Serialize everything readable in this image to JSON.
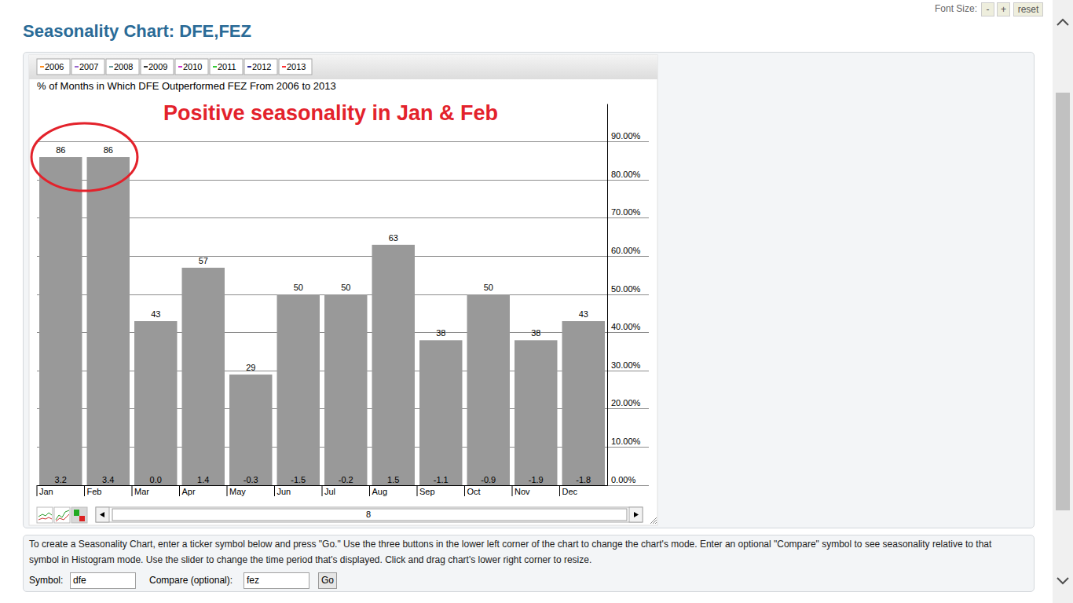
{
  "page": {
    "title": "Seasonality Chart: DFE,FEZ",
    "font_size_label": "Font Size:",
    "font_size_buttons": [
      "-",
      "+",
      "reset"
    ],
    "slider_value": 8,
    "instructions": "To create a Seasonality Chart, enter a ticker symbol below and press \"Go.\" Use the three buttons in the lower left corner of the chart to change the chart's mode. Enter an optional \"Compare\" symbol to see seasonality relative to that symbol in Histogram mode. Use the slider to change the time period that's displayed. Click and drag chart's lower right corner to resize.",
    "symbol_label": "Symbol:",
    "symbol_value": "dfe",
    "compare_label": "Compare (optional):",
    "compare_value": "fez",
    "go_button": "Go"
  },
  "chart_data": {
    "type": "bar",
    "title": "% of Months in Which DFE Outperformed FEZ From 2006 to 2013",
    "legend_items": [
      {
        "name": "2006",
        "color": "#ff8c1a"
      },
      {
        "name": "2007",
        "color": "#9966cc"
      },
      {
        "name": "2008",
        "color": "#669999"
      },
      {
        "name": "2009",
        "color": "#333333"
      },
      {
        "name": "2010",
        "color": "#cc33cc"
      },
      {
        "name": "2011",
        "color": "#33cc33"
      },
      {
        "name": "2012",
        "color": "#333399"
      },
      {
        "name": "2013",
        "color": "#ff3333"
      }
    ],
    "categories": [
      "Jan",
      "Feb",
      "Mar",
      "Apr",
      "May",
      "Jun",
      "Jul",
      "Aug",
      "Sep",
      "Oct",
      "Nov",
      "Dec"
    ],
    "values": [
      86,
      86,
      43,
      57,
      29,
      50,
      50,
      63,
      38,
      50,
      38,
      43
    ],
    "footer_labels": [
      "3.2",
      "3.4",
      "0.0",
      "1.4",
      "-0.3",
      "-1.5",
      "-0.2",
      "1.5",
      "-1.1",
      "-0.9",
      "-1.9",
      "-1.8"
    ],
    "color": "#999999",
    "data_labels": true,
    "grid": true,
    "ylim": [
      0,
      100
    ],
    "yticks": [
      {
        "value": 0,
        "label": "0.00%"
      },
      {
        "value": 10,
        "label": "10.00%"
      },
      {
        "value": 20,
        "label": "20.00%"
      },
      {
        "value": 30,
        "label": "30.00%"
      },
      {
        "value": 40,
        "label": "40.00%"
      },
      {
        "value": 50,
        "label": "50.00%"
      },
      {
        "value": 60,
        "label": "60.00%"
      },
      {
        "value": 70,
        "label": "70.00%"
      },
      {
        "value": 80,
        "label": "80.00%"
      },
      {
        "value": 90,
        "label": "90.00%"
      }
    ],
    "annotations": [
      {
        "text": "Positive seasonality in Jan & Feb",
        "color": "#e3222b"
      }
    ]
  }
}
